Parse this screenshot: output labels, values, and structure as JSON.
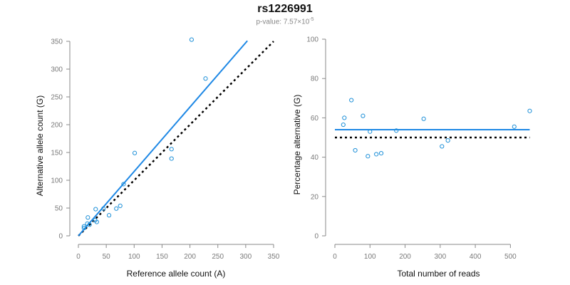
{
  "chart": {
    "title": "rs1226991",
    "subtitle_prefix": "p-value: 7.57×10",
    "subtitle_exponent": "-5"
  },
  "colors": {
    "points": "#1e90d8",
    "fit_line": "#1e88e5",
    "reference_line": "#000000",
    "axis": "#8a8a8a"
  },
  "chart_data": [
    {
      "type": "scatter",
      "xlabel": "Reference allele count (A)",
      "ylabel": "Alternative allele count (G)",
      "xlim": [
        0,
        350
      ],
      "ylim": [
        0,
        350
      ],
      "xticks": [
        0,
        50,
        100,
        150,
        200,
        250,
        300,
        350
      ],
      "yticks": [
        0,
        50,
        100,
        150,
        200,
        250,
        300,
        350
      ],
      "points": [
        [
          203,
          353
        ],
        [
          228,
          283
        ],
        [
          101,
          149
        ],
        [
          167,
          156
        ],
        [
          167,
          139
        ],
        [
          81,
          93
        ],
        [
          31,
          48
        ],
        [
          75,
          54
        ],
        [
          68,
          49
        ],
        [
          55,
          37
        ],
        [
          45,
          49
        ],
        [
          17,
          33
        ],
        [
          33,
          25
        ],
        [
          30,
          28
        ],
        [
          10,
          17
        ],
        [
          10,
          14
        ],
        [
          16,
          22
        ],
        [
          20,
          20
        ]
      ],
      "fit_line": [
        [
          0,
          0
        ],
        [
          303,
          351
        ]
      ],
      "reference_line": [
        [
          0,
          0
        ],
        [
          350,
          350
        ]
      ]
    },
    {
      "type": "scatter",
      "xlabel": "Total number of reads",
      "ylabel": "Percentage alternative (G)",
      "xlim": [
        0,
        550
      ],
      "ylim": [
        0,
        100
      ],
      "xticks": [
        0,
        100,
        200,
        300,
        400,
        500
      ],
      "yticks": [
        0,
        20,
        40,
        60,
        80,
        100
      ],
      "points": [
        [
          24,
          56.5
        ],
        [
          27,
          60
        ],
        [
          47,
          69
        ],
        [
          58,
          43.5
        ],
        [
          80,
          61
        ],
        [
          94,
          40.5
        ],
        [
          100,
          53
        ],
        [
          118,
          41.5
        ],
        [
          132,
          42
        ],
        [
          175,
          53.5
        ],
        [
          253,
          59.5
        ],
        [
          305,
          45.5
        ],
        [
          322,
          48.5
        ],
        [
          511,
          55.5
        ],
        [
          555,
          63.5
        ]
      ],
      "fit_line": [
        [
          0,
          54
        ],
        [
          555,
          54
        ]
      ],
      "reference_line": [
        [
          0,
          50
        ],
        [
          555,
          50
        ]
      ]
    }
  ]
}
